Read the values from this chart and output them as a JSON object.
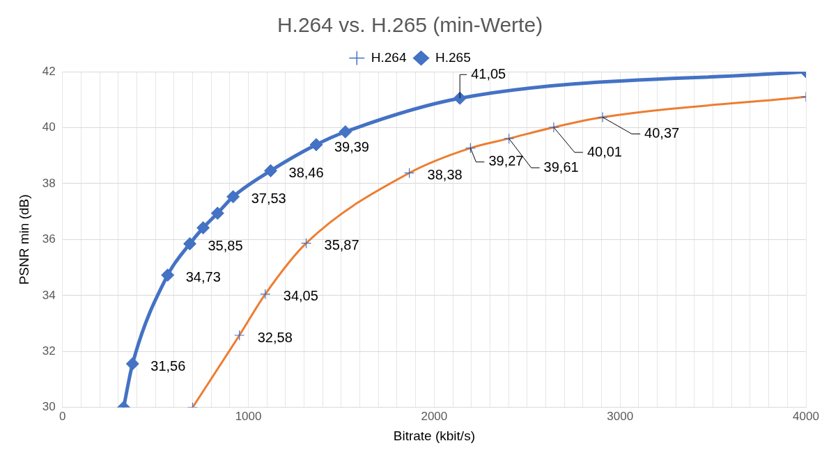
{
  "chart_data": {
    "type": "line",
    "title": "H.264 vs. H.265 (min-Werte)",
    "xlabel": "Bitrate (kbit/s)",
    "ylabel": "PSNR min (dB)",
    "series": [
      {
        "name": "H.264",
        "color": "#ed7d31",
        "marker": "cross",
        "x": [
          700,
          952,
          1091,
          1311,
          1866,
          2195,
          2402,
          2643,
          2906,
          4000
        ],
        "values": [
          30,
          32.58,
          34.05,
          35.87,
          38.38,
          39.27,
          39.61,
          40.01,
          40.37,
          41.1
        ],
        "value_labels": [
          null,
          "32,58",
          "34,05",
          "35,87",
          "38,38",
          "39,27",
          "39,61",
          "40,01",
          "40,37",
          null
        ]
      },
      {
        "name": "H.265",
        "color": "#4472c4",
        "marker": "diamond",
        "x": [
          329,
          377,
          566,
          685,
          757,
          834,
          918,
          1120,
          1365,
          1522,
          2138,
          4000
        ],
        "values": [
          30,
          31.56,
          34.73,
          35.85,
          36.42,
          36.94,
          37.53,
          38.46,
          39.39,
          39.85,
          41.05,
          42
        ],
        "value_labels": [
          null,
          "31,56",
          "34,73",
          "35,85",
          null,
          null,
          "37,53",
          "38,46",
          "39,39",
          null,
          "41,05",
          null
        ]
      }
    ],
    "xlim": [
      0,
      4000
    ],
    "xticks": [
      0,
      {
        "value": 100,
        "label": null
      },
      {
        "value": 200,
        "label": null
      },
      {
        "value": 300,
        "label": null
      },
      {
        "value": 400,
        "label": null
      },
      {
        "value": 500,
        "label": null
      },
      {
        "value": 600,
        "label": null
      },
      {
        "value": 700,
        "label": null
      },
      {
        "value": 800,
        "label": null
      },
      {
        "value": 900,
        "label": null
      },
      1000,
      {
        "value": 1100,
        "label": null
      },
      {
        "value": 1200,
        "label": null
      },
      {
        "value": 1300,
        "label": null
      },
      {
        "value": 1400,
        "label": null
      },
      {
        "value": 1500,
        "label": null
      },
      {
        "value": 1600,
        "label": null
      },
      {
        "value": 1700,
        "label": null
      },
      {
        "value": 1800,
        "label": null
      },
      {
        "value": 1900,
        "label": null
      },
      2000,
      {
        "value": 2100,
        "label": null
      },
      {
        "value": 2200,
        "label": null
      },
      {
        "value": 2300,
        "label": null
      },
      {
        "value": 2400,
        "label": null
      },
      {
        "value": 2500,
        "label": null
      },
      {
        "value": 2600,
        "label": null
      },
      {
        "value": 2700,
        "label": null
      },
      {
        "value": 2800,
        "label": null
      },
      {
        "value": 2900,
        "label": null
      },
      3000,
      {
        "value": 3100,
        "label": null
      },
      {
        "value": 3200,
        "label": null
      },
      {
        "value": 3300,
        "label": null
      },
      {
        "value": 3400,
        "label": null
      },
      {
        "value": 3500,
        "label": null
      },
      {
        "value": 3600,
        "label": null
      },
      {
        "value": 3700,
        "label": null
      },
      {
        "value": 3800,
        "label": null
      },
      {
        "value": 3900,
        "label": null
      },
      4000
    ],
    "ylim": [
      30,
      42
    ],
    "yticks": [
      30,
      32,
      34,
      36,
      38,
      40,
      42
    ],
    "grid": true,
    "legend": "top",
    "line_style": "solid"
  }
}
